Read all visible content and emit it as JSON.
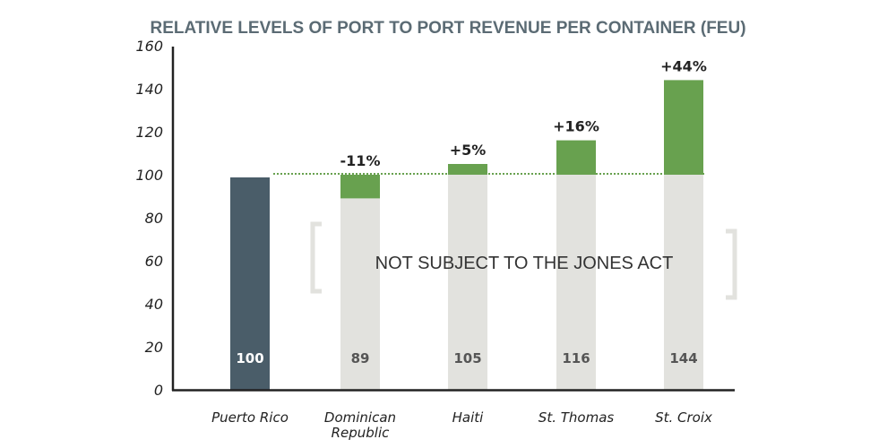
{
  "chart_data": {
    "type": "bar",
    "title": "RELATIVE LEVELS OF PORT TO PORT REVENUE PER CONTAINER (FEU)",
    "categories": [
      [
        "Puerto Rico"
      ],
      [
        "Dominican",
        "Republic"
      ],
      [
        "Haiti"
      ],
      [
        "St. Thomas"
      ],
      [
        "St. Croix"
      ]
    ],
    "values": [
      100,
      89,
      105,
      116,
      144
    ],
    "value_labels": [
      "100",
      "89",
      "105",
      "116",
      "144"
    ],
    "change_labels": [
      "",
      "-11%",
      "+5%",
      "+16%",
      "+44%"
    ],
    "baseline": 100,
    "ylim": [
      0,
      160
    ],
    "yticks": [
      0,
      20,
      40,
      60,
      80,
      100,
      120,
      140,
      160
    ],
    "annotation": "NOT SUBJECT TO THE JONES ACT",
    "grid": false,
    "colors": {
      "reference_bar": "#4a5d69",
      "base_bar": "#e2e2de",
      "difference": "#68a14f",
      "title": "#5b6b74",
      "bracket": "#e2e2de"
    }
  }
}
